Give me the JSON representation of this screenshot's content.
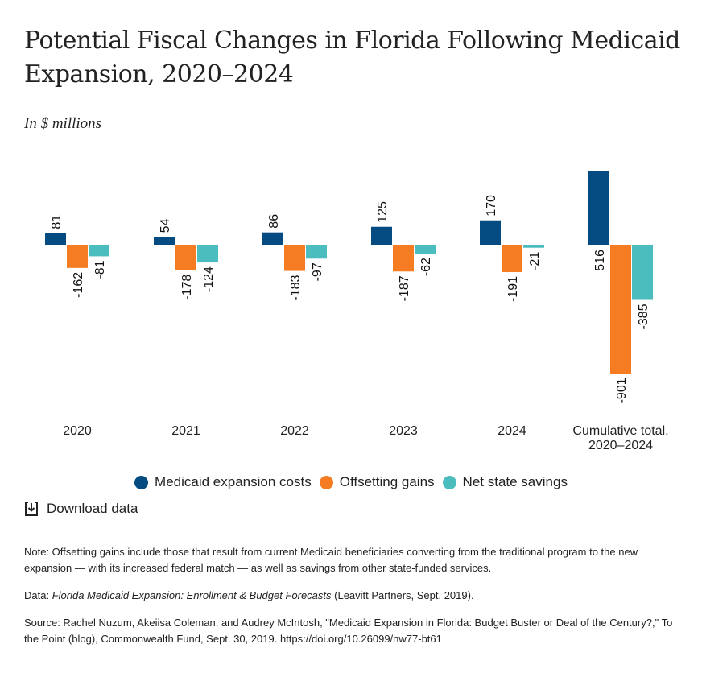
{
  "title": "Potential Fiscal Changes in Florida Following Medicaid Expansion, 2020–2024",
  "subtitle": "In $ millions",
  "colors": {
    "costs": "#034b80",
    "gains": "#f57c22",
    "savings": "#4cbdbe"
  },
  "chart_data": {
    "type": "bar",
    "categories": [
      "2020",
      "2021",
      "2022",
      "2023",
      "2024",
      "Cumulative total,\n2020–2024"
    ],
    "series": [
      {
        "name": "Medicaid expansion costs",
        "color": "#034b80",
        "values": [
          81,
          54,
          86,
          125,
          170,
          516
        ]
      },
      {
        "name": "Offsetting gains",
        "color": "#f57c22",
        "values": [
          -162,
          -178,
          -183,
          -187,
          -191,
          -901
        ]
      },
      {
        "name": "Net state savings",
        "color": "#4cbdbe",
        "values": [
          -81,
          -124,
          -97,
          -62,
          -21,
          -385
        ]
      }
    ],
    "ylabel": "In $ millions",
    "grid": false,
    "legend": "bottom-center"
  },
  "legend": [
    {
      "label": "Medicaid expansion costs",
      "color": "#034b80"
    },
    {
      "label": "Offsetting gains",
      "color": "#f57c22"
    },
    {
      "label": "Net state savings",
      "color": "#4cbdbe"
    }
  ],
  "download_label": "Download data",
  "notes": {
    "note": "Note: Offsetting gains include those that result from current Medicaid beneficiaries converting from the traditional program to the new expansion — with its increased federal match — as well as savings from other state-funded services.",
    "data_prefix": "Data: ",
    "data_title": "Florida Medicaid Expansion: Enrollment & Budget Forecasts",
    "data_suffix": " (Leavitt Partners, Sept. 2019).",
    "source": "Source: Rachel Nuzum, Akeiisa Coleman, and Audrey McIntosh, \"Medicaid Expansion in Florida: Budget Buster or Deal of the Century?,\" To the Point (blog), Commonwealth Fund, Sept. 30, 2019. https://doi.org/10.26099/nw77-bt61"
  }
}
